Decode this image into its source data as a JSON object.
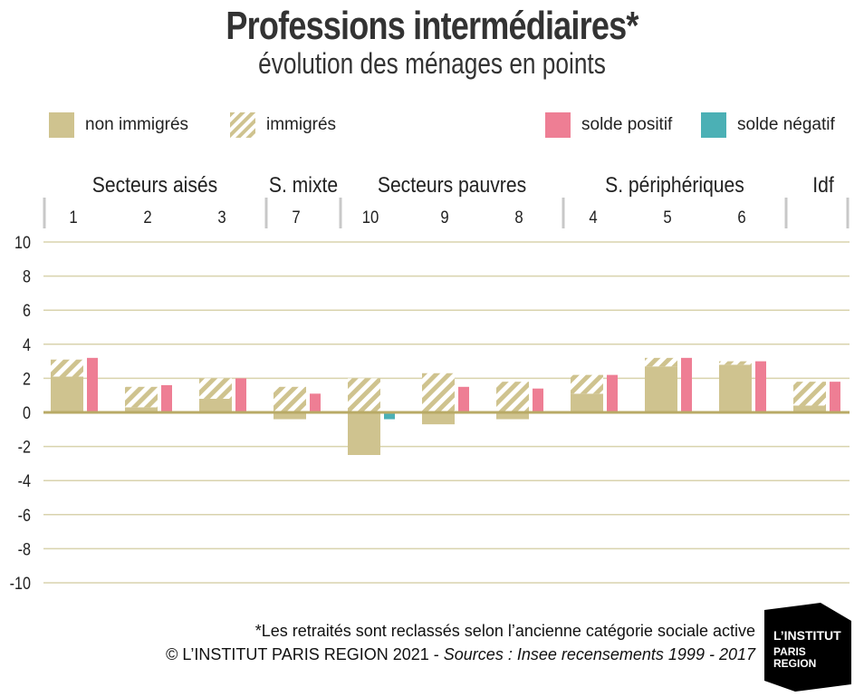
{
  "colors": {
    "non_immigres": "#cfc38f",
    "immigres_stripe": "#cfc38f",
    "solde_positif": "#ee7e94",
    "solde_negatif": "#4bb0b5",
    "grid": "#d9d3ad",
    "zero_line": "#b8aa66",
    "logo_bg": "#000000"
  },
  "legend": {
    "non_immigres": "non immigrés",
    "immigres": "immigrés",
    "solde_positif": "solde positif",
    "solde_negatif": "solde négatif"
  },
  "footer": {
    "note": "*Les retraités sont reclassés selon l’ancienne catégorie sociale active",
    "copyright": "© L’INSTITUT PARIS REGION 2021 - ",
    "sources": "Sources : Insee recensements 1999 - 2017"
  },
  "logo": {
    "line1": "L’INSTITUT",
    "line2": "PARIS",
    "line3": "REGION"
  },
  "chart_data": {
    "type": "bar",
    "title": "Professions intermédiaires*",
    "subtitle": "évolution des ménages en points",
    "ylim": [
      -10,
      10
    ],
    "yticks": [
      10,
      8,
      6,
      4,
      2,
      0,
      -2,
      -4,
      -6,
      -8,
      -10
    ],
    "grid": true,
    "legend_position": "top",
    "groups": [
      {
        "label": "Secteurs aisés",
        "categories": [
          "1",
          "2",
          "3"
        ]
      },
      {
        "label": "S. mixte",
        "categories": [
          "7"
        ]
      },
      {
        "label": "Secteurs pauvres",
        "categories": [
          "10",
          "9",
          "8"
        ]
      },
      {
        "label": "S. périphériques",
        "categories": [
          "4",
          "5",
          "6"
        ]
      },
      {
        "label": "Idf",
        "categories": [
          ""
        ]
      }
    ],
    "categories": [
      "1",
      "2",
      "3",
      "7",
      "10",
      "9",
      "8",
      "4",
      "5",
      "6",
      "Idf"
    ],
    "series": [
      {
        "name": "non immigrés",
        "values": [
          2.1,
          0.3,
          0.8,
          -0.4,
          -2.5,
          -0.7,
          -0.4,
          1.1,
          2.7,
          2.8,
          0.4
        ]
      },
      {
        "name": "immigrés",
        "values": [
          1.0,
          1.2,
          1.2,
          1.5,
          2.0,
          2.3,
          1.8,
          1.1,
          0.5,
          0.2,
          1.4
        ]
      },
      {
        "name": "solde",
        "values": [
          3.2,
          1.6,
          2.0,
          1.1,
          -0.4,
          1.5,
          1.4,
          2.2,
          3.2,
          3.0,
          1.8
        ]
      }
    ]
  }
}
